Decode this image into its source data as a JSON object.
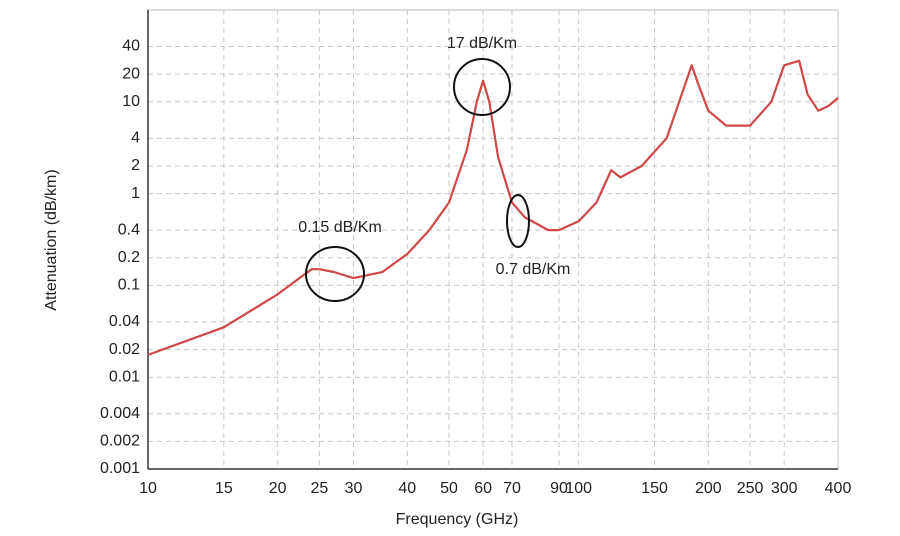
{
  "chart_data": {
    "type": "line",
    "x_label": "Frequency (GHz)",
    "y_label": "Attenuation (dB/km)",
    "x": [
      10,
      15,
      20,
      23,
      24,
      25,
      27,
      30,
      35,
      40,
      45,
      50,
      55,
      58,
      60,
      62,
      65,
      70,
      75,
      85,
      90,
      100,
      110,
      119,
      125,
      140,
      160,
      183,
      190,
      200,
      220,
      250,
      280,
      300,
      325,
      340,
      360,
      380,
      400
    ],
    "values": [
      0.0175,
      0.035,
      0.08,
      0.13,
      0.15,
      0.15,
      0.14,
      0.12,
      0.14,
      0.22,
      0.4,
      0.8,
      3,
      10,
      17,
      10,
      2.5,
      0.8,
      0.55,
      0.4,
      0.4,
      0.5,
      0.8,
      1.8,
      1.5,
      2,
      4,
      25,
      15,
      8,
      5.5,
      5.5,
      10,
      25,
      28,
      12,
      8,
      9,
      11
    ],
    "color": "#d0474a",
    "xlim": [
      10,
      400
    ],
    "ylim": [
      0.001,
      100
    ],
    "xlog": true,
    "ylog": true,
    "grid": true,
    "xticks": [
      10,
      15,
      20,
      25,
      30,
      40,
      50,
      60,
      70,
      90,
      100,
      150,
      200,
      250,
      300,
      400
    ],
    "yticks": [
      0.001,
      0.002,
      0.004,
      0.01,
      0.02,
      0.04,
      0.1,
      0.2,
      0.4,
      1,
      2,
      4,
      10,
      20,
      40
    ],
    "annotations": [
      "17 dB/Km",
      "0.15 dB/Km",
      "0.7 dB/Km"
    ]
  }
}
